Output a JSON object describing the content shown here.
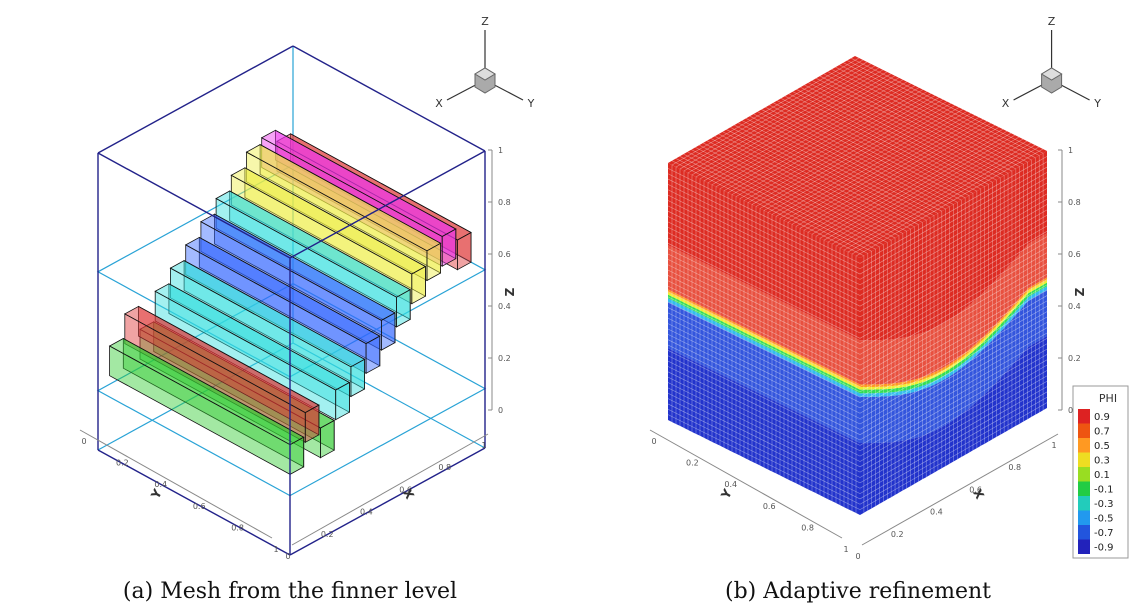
{
  "panels": [
    {
      "caption": "(a) Mesh from the finner level",
      "orientation": {
        "z": "Z",
        "x": "X",
        "y": "Y"
      },
      "z_axis": {
        "title": "Z",
        "ticks": [
          "0",
          "0.2",
          "0.4",
          "0.6",
          "0.8",
          "1"
        ]
      },
      "y_axis": {
        "title": "Y",
        "ticks": [
          "0",
          "0.2",
          "0.4",
          "0.6",
          "0.8",
          "1"
        ]
      },
      "x_axis": {
        "title": "X",
        "ticks": [
          "0",
          "0.2",
          "0.4",
          "0.6",
          "0.8",
          "1"
        ]
      }
    },
    {
      "caption": "(b) Adaptive refinement",
      "orientation": {
        "z": "Z",
        "x": "X",
        "y": "Y"
      },
      "z_axis": {
        "title": "Z",
        "ticks": [
          "0",
          "0.2",
          "0.4",
          "0.6",
          "0.8",
          "1"
        ]
      },
      "y_axis": {
        "title": "Y",
        "ticks": [
          "0",
          "0.2",
          "0.4",
          "0.6",
          "0.8",
          "1"
        ]
      },
      "x_axis": {
        "title": "X",
        "ticks": [
          "0",
          "0.2",
          "0.4",
          "0.6",
          "0.8",
          "1"
        ]
      },
      "legend": {
        "title": "PHI",
        "labels": [
          "0.9",
          "0.7",
          "0.5",
          "0.3",
          "0.1",
          "-0.1",
          "-0.3",
          "-0.5",
          "-0.7",
          "-0.9"
        ]
      }
    }
  ]
}
